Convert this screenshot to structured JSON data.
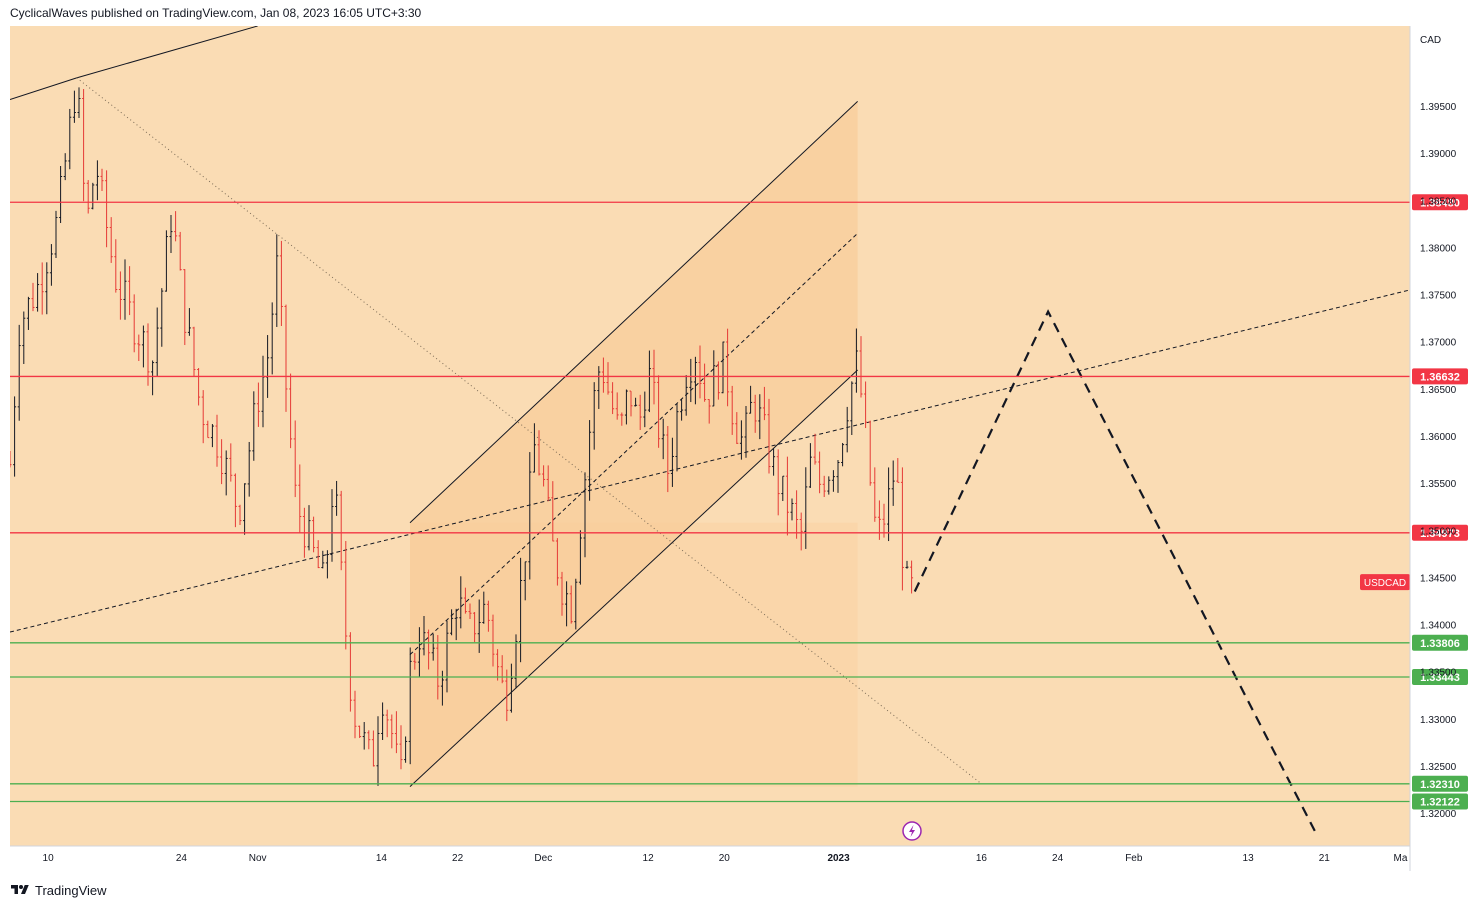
{
  "header": {
    "publisher": "CyclicalWaves published on TradingView.com, Jan 08, 2023 16:05 UTC+3:30"
  },
  "footer": {
    "brand": "TradingView"
  },
  "colors": {
    "background": "#fadcb4",
    "channel_fill": "#f8cc98",
    "resistance": "#f23645",
    "support": "#4caf50",
    "candle_up": "#131722",
    "candle_down": "#e53935",
    "symbol_badge": "#f23645",
    "lightning": "#9c27b0"
  },
  "chart_data": {
    "type": "candlestick",
    "symbol": "USDCAD",
    "currency": "CAD",
    "y_range": [
      1.3165,
      1.4035
    ],
    "y_ticks": [
      "1.32000",
      "1.32500",
      "1.33000",
      "1.33500",
      "1.34000",
      "1.34500",
      "1.35000",
      "1.35500",
      "1.36000",
      "1.36500",
      "1.37000",
      "1.37500",
      "1.38000",
      "1.38500",
      "1.39000",
      "1.39500"
    ],
    "x_start": "2022-10-06",
    "x_end": "2023-03-02",
    "x_ticks": [
      {
        "date": "2022-10-10",
        "label": "10"
      },
      {
        "date": "2022-10-24",
        "label": "24"
      },
      {
        "date": "2022-11-01",
        "label": "Nov"
      },
      {
        "date": "2022-11-14",
        "label": "14"
      },
      {
        "date": "2022-11-22",
        "label": "22"
      },
      {
        "date": "2022-12-01",
        "label": "Dec"
      },
      {
        "date": "2022-12-12",
        "label": "12"
      },
      {
        "date": "2022-12-20",
        "label": "20"
      },
      {
        "date": "2023-01-01",
        "label": "2023"
      },
      {
        "date": "2023-01-16",
        "label": "16"
      },
      {
        "date": "2023-01-24",
        "label": "24"
      },
      {
        "date": "2023-02-01",
        "label": "Feb"
      },
      {
        "date": "2023-02-13",
        "label": "13"
      },
      {
        "date": "2023-02-21",
        "label": "21"
      },
      {
        "date": "2023-03-01",
        "label": "Ma"
      }
    ],
    "price_path": [
      [
        "2022-10-06",
        1.357
      ],
      [
        "2022-10-07",
        1.372
      ],
      [
        "2022-10-09",
        1.376
      ],
      [
        "2022-10-11",
        1.383
      ],
      [
        "2022-10-13",
        1.398
      ],
      [
        "2022-10-14",
        1.382
      ],
      [
        "2022-10-15",
        1.389
      ],
      [
        "2022-10-17",
        1.377
      ],
      [
        "2022-10-19",
        1.372
      ],
      [
        "2022-10-21",
        1.368
      ],
      [
        "2022-10-23",
        1.384
      ],
      [
        "2022-10-24",
        1.375
      ],
      [
        "2022-10-26",
        1.363
      ],
      [
        "2022-10-28",
        1.359
      ],
      [
        "2022-10-30",
        1.352
      ],
      [
        "2022-11-01",
        1.364
      ],
      [
        "2022-11-02",
        1.368
      ],
      [
        "2022-11-03",
        1.378
      ],
      [
        "2022-11-04",
        1.365
      ],
      [
        "2022-11-05",
        1.353
      ],
      [
        "2022-11-07",
        1.347
      ],
      [
        "2022-11-08",
        1.344
      ],
      [
        "2022-11-09",
        1.356
      ],
      [
        "2022-11-10",
        1.342
      ],
      [
        "2022-11-11",
        1.331
      ],
      [
        "2022-11-12",
        1.328
      ],
      [
        "2022-11-13",
        1.325
      ],
      [
        "2022-11-14",
        1.333
      ],
      [
        "2022-11-15",
        1.329
      ],
      [
        "2022-11-16",
        1.323
      ],
      [
        "2022-11-17",
        1.335
      ],
      [
        "2022-11-18",
        1.339
      ],
      [
        "2022-11-20",
        1.334
      ],
      [
        "2022-11-22",
        1.343
      ],
      [
        "2022-11-23",
        1.339
      ],
      [
        "2022-11-25",
        1.342
      ],
      [
        "2022-11-26",
        1.336
      ],
      [
        "2022-11-27",
        1.332
      ],
      [
        "2022-11-28",
        1.339
      ],
      [
        "2022-11-29",
        1.347
      ],
      [
        "2022-11-30",
        1.359
      ],
      [
        "2022-12-01",
        1.355
      ],
      [
        "2022-12-02",
        1.348
      ],
      [
        "2022-12-03",
        1.344
      ],
      [
        "2022-12-04",
        1.342
      ],
      [
        "2022-12-05",
        1.352
      ],
      [
        "2022-12-06",
        1.362
      ],
      [
        "2022-12-07",
        1.368
      ],
      [
        "2022-12-08",
        1.364
      ],
      [
        "2022-12-09",
        1.36
      ],
      [
        "2022-12-10",
        1.365
      ],
      [
        "2022-12-11",
        1.361
      ],
      [
        "2022-12-12",
        1.367
      ],
      [
        "2022-12-14",
        1.356
      ],
      [
        "2022-12-15",
        1.362
      ],
      [
        "2022-12-16",
        1.367
      ],
      [
        "2022-12-17",
        1.369
      ],
      [
        "2022-12-18",
        1.364
      ],
      [
        "2022-12-20",
        1.368
      ],
      [
        "2022-12-21",
        1.362
      ],
      [
        "2022-12-22",
        1.359
      ],
      [
        "2022-12-23",
        1.364
      ],
      [
        "2022-12-24",
        1.361
      ],
      [
        "2022-12-25",
        1.357
      ],
      [
        "2022-12-26",
        1.354
      ],
      [
        "2022-12-27",
        1.352
      ],
      [
        "2022-12-28",
        1.349
      ],
      [
        "2022-12-29",
        1.357
      ],
      [
        "2022-12-30",
        1.355
      ],
      [
        "2023-01-01",
        1.358
      ],
      [
        "2023-01-02",
        1.364
      ],
      [
        "2023-01-03",
        1.368
      ],
      [
        "2023-01-04",
        1.358
      ],
      [
        "2023-01-05",
        1.349
      ],
      [
        "2023-01-06",
        1.352
      ],
      [
        "2023-01-07",
        1.357
      ],
      [
        "2023-01-08",
        1.344
      ],
      [
        "2023-01-09",
        1.3435
      ]
    ],
    "horizontal_levels": [
      {
        "price": 1.3848,
        "label": "1.38480",
        "kind": "resistance"
      },
      {
        "price": 1.36632,
        "label": "1.36632",
        "kind": "resistance"
      },
      {
        "price": 1.34973,
        "label": "1.34973",
        "kind": "resistance"
      },
      {
        "price": 1.33806,
        "label": "1.33806",
        "kind": "support"
      },
      {
        "price": 1.33443,
        "label": "1.33443",
        "kind": "support"
      },
      {
        "price": 1.3231,
        "label": "1.32310",
        "kind": "support"
      },
      {
        "price": 1.32122,
        "label": "1.32122",
        "kind": "support"
      }
    ],
    "symbol_badge": {
      "label": "USDCAD",
      "price": 1.3445
    },
    "drawings": {
      "top_trendline": [
        [
          "2022-10-06",
          1.3957
        ],
        [
          "2022-10-13",
          1.398
        ],
        [
          "2022-11-01",
          1.4035
        ]
      ],
      "dotted_diagonal": [
        [
          "2022-10-13",
          1.398
        ],
        [
          "2023-01-16",
          1.3231
        ]
      ],
      "long_dashed_line": [
        [
          "2022-10-06",
          1.3392
        ],
        [
          "2023-03-02",
          1.3755
        ]
      ],
      "channel_upper": [
        [
          "2022-11-17",
          1.3508
        ],
        [
          "2023-01-03",
          1.3955
        ]
      ],
      "channel_lower": [
        [
          "2022-11-17",
          1.3228
        ],
        [
          "2023-01-03",
          1.367
        ]
      ],
      "channel_mid": [
        [
          "2022-11-17",
          1.3368
        ],
        [
          "2023-01-03",
          1.3815
        ]
      ],
      "projection": [
        [
          "2023-01-09",
          1.3435
        ],
        [
          "2023-01-23",
          1.3732
        ],
        [
          "2023-02-20",
          1.3181
        ]
      ]
    }
  }
}
